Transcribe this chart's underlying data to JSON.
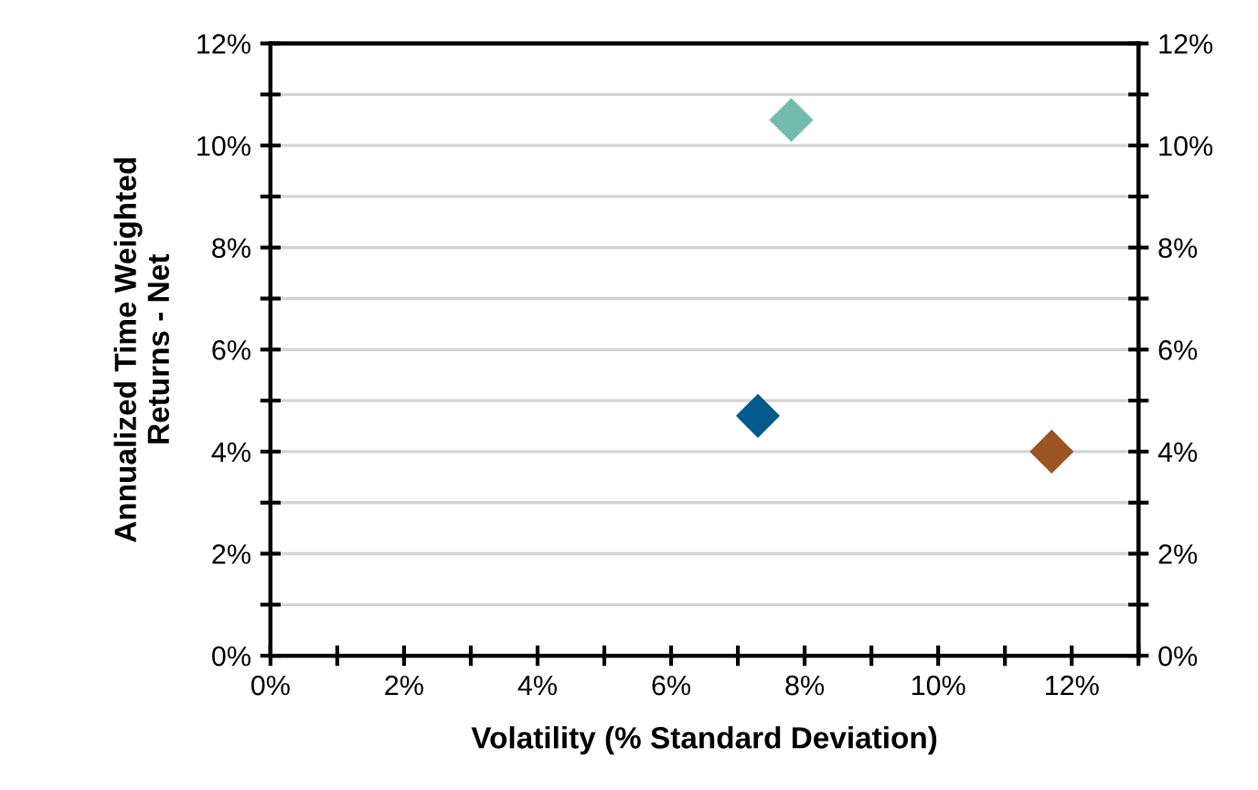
{
  "chart_data": {
    "type": "scatter",
    "xlabel": "Volatility (% Standard Deviation)",
    "ylabel": "Annualized Time Weighted\nReturns - Net",
    "series": [
      {
        "x": [
          7.3,
          7.8,
          11.7
        ],
        "values": [
          4.7,
          10.5,
          4.0
        ],
        "colors": [
          "#005a8c",
          "#72bcad",
          "#9c5424"
        ]
      }
    ],
    "marker": "diamond",
    "grid": "y",
    "xlim": [
      0,
      13
    ],
    "xticks": [
      {
        "value": 0,
        "label": "0%"
      },
      {
        "value": 1,
        "label": null
      },
      {
        "value": 2,
        "label": "2%"
      },
      {
        "value": 3,
        "label": null
      },
      {
        "value": 4,
        "label": "4%"
      },
      {
        "value": 5,
        "label": null
      },
      {
        "value": 6,
        "label": "6%"
      },
      {
        "value": 7,
        "label": null
      },
      {
        "value": 8,
        "label": "8%"
      },
      {
        "value": 9,
        "label": null
      },
      {
        "value": 10,
        "label": "10%"
      },
      {
        "value": 11,
        "label": null
      },
      {
        "value": 12,
        "label": "12%"
      },
      {
        "value": 13,
        "label": null
      }
    ],
    "ylim": [
      0,
      12
    ],
    "yticks": [
      {
        "value": 0,
        "label": "0%"
      },
      {
        "value": 1,
        "label": null
      },
      {
        "value": 2,
        "label": "2%"
      },
      {
        "value": 3,
        "label": null
      },
      {
        "value": 4,
        "label": "4%"
      },
      {
        "value": 5,
        "label": null
      },
      {
        "value": 6,
        "label": "6%"
      },
      {
        "value": 7,
        "label": null
      },
      {
        "value": 8,
        "label": "8%"
      },
      {
        "value": 9,
        "label": null
      },
      {
        "value": 10,
        "label": "10%"
      },
      {
        "value": 11,
        "label": null
      },
      {
        "value": 12,
        "label": "12%"
      }
    ],
    "y2lim": [
      0,
      12
    ],
    "y2ticks": [
      {
        "value": 0,
        "label": "0%"
      },
      {
        "value": 1,
        "label": null
      },
      {
        "value": 2,
        "label": "2%"
      },
      {
        "value": 3,
        "label": null
      },
      {
        "value": 4,
        "label": "4%"
      },
      {
        "value": 5,
        "label": null
      },
      {
        "value": 6,
        "label": "6%"
      },
      {
        "value": 7,
        "label": null
      },
      {
        "value": 8,
        "label": "8%"
      },
      {
        "value": 9,
        "label": null
      },
      {
        "value": 10,
        "label": "10%"
      },
      {
        "value": 11,
        "label": null
      },
      {
        "value": 12,
        "label": "12%"
      }
    ]
  }
}
